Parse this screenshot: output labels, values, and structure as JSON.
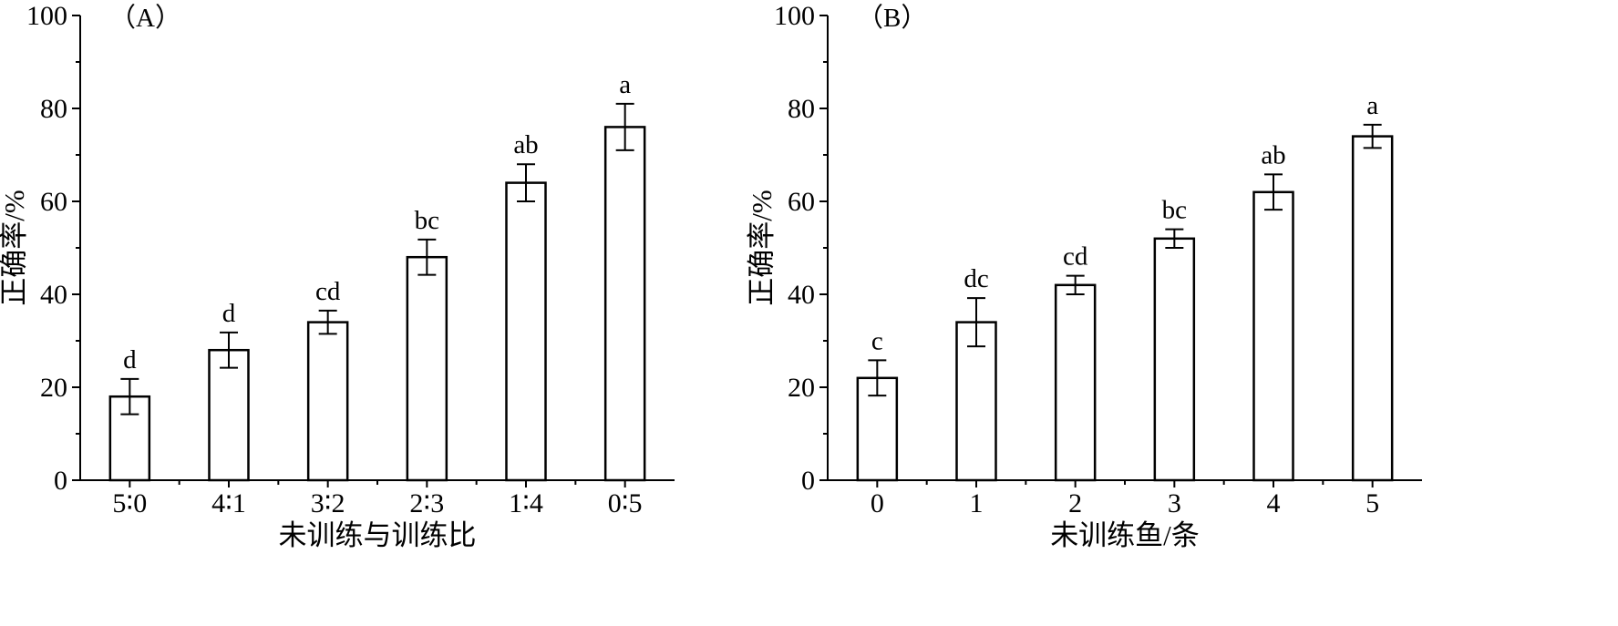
{
  "chart_data": [
    {
      "type": "bar",
      "panel_label": "（A）",
      "categories": [
        "5∶0",
        "4∶1",
        "3∶2",
        "2∶3",
        "1∶4",
        "0∶5"
      ],
      "values": [
        18,
        28,
        34,
        48,
        64,
        76
      ],
      "errors": [
        3.8,
        3.8,
        2.5,
        3.8,
        4.0,
        5.0
      ],
      "significance": [
        "d",
        "d",
        "cd",
        "bc",
        "ab",
        "a"
      ],
      "xlabel": "未训练与训练比",
      "ylabel": "正确率/%",
      "ylim": [
        0,
        100
      ],
      "yticks": [
        0,
        20,
        40,
        60,
        80,
        100
      ],
      "grid": false
    },
    {
      "type": "bar",
      "panel_label": "（B）",
      "categories": [
        "0",
        "1",
        "2",
        "3",
        "4",
        "5"
      ],
      "values": [
        22,
        34,
        42,
        52,
        62,
        74
      ],
      "errors": [
        3.8,
        5.2,
        2.0,
        2.0,
        3.8,
        2.5
      ],
      "significance": [
        "c",
        "dc",
        "cd",
        "bc",
        "ab",
        "a"
      ],
      "xlabel": "未训练鱼/条",
      "ylabel": "正确率/%",
      "ylim": [
        0,
        100
      ],
      "yticks": [
        0,
        20,
        40,
        60,
        80,
        100
      ],
      "grid": false
    }
  ],
  "colors": {
    "bar_fill": "#ffffff",
    "bar_stroke": "#000000"
  }
}
